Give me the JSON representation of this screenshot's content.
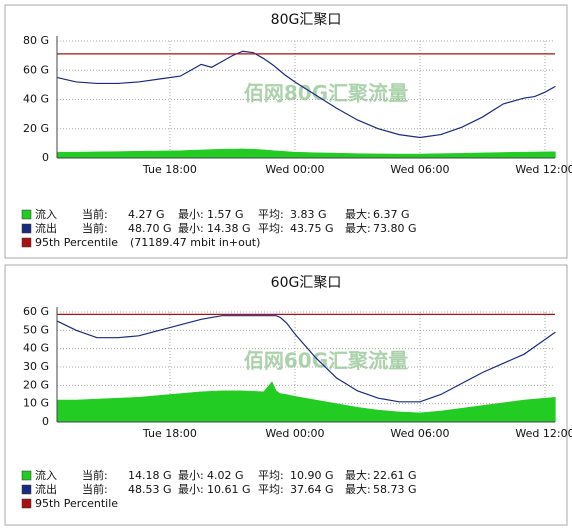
{
  "chart_data": [
    {
      "type": "area-line",
      "title": "80G汇聚口",
      "watermark": "佰网80G汇聚流量",
      "xlim": [
        12.58,
        36.48
      ],
      "ylim": [
        0,
        80
      ],
      "xticks": [
        {
          "value": 18,
          "label": "Tue 18:00"
        },
        {
          "value": 24,
          "label": "Wed 00:00"
        },
        {
          "value": 30,
          "label": "Wed 06:00"
        },
        {
          "value": 36,
          "label": "Wed 12:00"
        }
      ],
      "yticks": [
        0,
        {
          "value": 20,
          "label": "20 G"
        },
        {
          "value": 40,
          "label": "40 G"
        },
        {
          "value": 60,
          "label": "60 G"
        },
        {
          "value": 80,
          "label": "80 G"
        }
      ],
      "grid": true,
      "x": [
        12.6,
        13.5,
        14.5,
        15.5,
        16.5,
        17.5,
        18.5,
        19,
        19.5,
        20,
        20.5,
        21,
        21.5,
        22,
        22.5,
        23,
        23.5,
        24,
        25,
        26,
        27,
        28,
        29,
        30,
        31,
        32,
        33,
        34,
        35,
        35.5,
        36,
        36.5
      ],
      "series": [
        {
          "name": "流入",
          "color": "#22cc22",
          "fill": true,
          "values": [
            4,
            4,
            4.2,
            4.4,
            4.6,
            4.8,
            5,
            5.3,
            5.5,
            5.8,
            6,
            6.1,
            6.2,
            6,
            5.6,
            5,
            4.5,
            4,
            3.6,
            3.3,
            3,
            2.8,
            2.7,
            2.7,
            3,
            3.2,
            3.5,
            3.8,
            4,
            4.1,
            4.2,
            4.3
          ],
          "stats": [
            {
              "label": "当前:",
              "value": "4.27 G"
            },
            {
              "label": "最小:",
              "value": "1.57 G"
            },
            {
              "label": "平均:",
              "value": "3.83 G"
            },
            {
              "label": "最大:",
              "value": "6.37 G"
            }
          ]
        },
        {
          "name": "流出",
          "color": "#1a2a80",
          "fill": false,
          "values": [
            55,
            52,
            51,
            51,
            52,
            54,
            56,
            60,
            64,
            62,
            66,
            70,
            73,
            72,
            68,
            63,
            57,
            52,
            43,
            34,
            26,
            20,
            16,
            14,
            16,
            21,
            28,
            37,
            41,
            42,
            45,
            49
          ],
          "stats": [
            {
              "label": "当前:",
              "value": "48.70 G"
            },
            {
              "label": "最小:",
              "value": "14.38 G"
            },
            {
              "label": "平均:",
              "value": "43.75 G"
            },
            {
              "label": "最大:",
              "value": "73.80 G"
            }
          ]
        }
      ],
      "percentile": {
        "name": "95th Percentile",
        "note": "(71189.47 mbit in+out)",
        "value": 71.18947,
        "color": "#aa1111"
      }
    },
    {
      "type": "area-line",
      "title": "60G汇聚口",
      "watermark": "佰网60G汇聚流量",
      "xlim": [
        12.58,
        36.48
      ],
      "ylim": [
        0,
        60
      ],
      "xticks": [
        {
          "value": 18,
          "label": "Tue 18:00"
        },
        {
          "value": 24,
          "label": "Wed 00:00"
        },
        {
          "value": 30,
          "label": "Wed 06:00"
        },
        {
          "value": 36,
          "label": "Wed 12:00"
        }
      ],
      "yticks": [
        0,
        {
          "value": 10,
          "label": "10 G"
        },
        {
          "value": 20,
          "label": "20 G"
        },
        {
          "value": 30,
          "label": "30 G"
        },
        {
          "value": 40,
          "label": "40 G"
        },
        {
          "value": 50,
          "label": "50 G"
        },
        {
          "value": 60,
          "label": "60 G"
        }
      ],
      "grid": true,
      "x": [
        12.6,
        13.5,
        14.5,
        15.5,
        16.5,
        17.5,
        18.5,
        19.5,
        20.5,
        21.5,
        22.5,
        22.9,
        23.1,
        23.3,
        23.6,
        24,
        25,
        26,
        27,
        28,
        29,
        30,
        31,
        32,
        33,
        34,
        35,
        36,
        36.5
      ],
      "series": [
        {
          "name": "流入",
          "color": "#22cc22",
          "fill": true,
          "values": [
            12,
            12,
            12.5,
            13,
            13.5,
            14.5,
            15.5,
            16.5,
            17,
            17,
            16.5,
            22,
            17,
            15.5,
            15,
            14,
            12,
            10,
            8,
            6.5,
            5.5,
            5,
            6,
            7.5,
            9,
            10.5,
            12,
            13,
            13.5
          ],
          "stats": [
            {
              "label": "当前:",
              "value": "14.18 G"
            },
            {
              "label": "最小:",
              "value": "4.02 G"
            },
            {
              "label": "平均:",
              "value": "10.90 G"
            },
            {
              "label": "最大:",
              "value": "22.61 G"
            }
          ]
        },
        {
          "name": "流出",
          "color": "#1a2a80",
          "fill": false,
          "values": [
            55,
            50,
            46,
            46,
            47,
            50,
            53,
            56,
            58,
            58,
            58,
            58,
            58,
            57,
            54,
            48,
            35,
            24,
            17,
            13,
            11,
            11,
            15,
            21,
            27,
            32,
            37,
            45,
            49
          ],
          "stats": [
            {
              "label": "当前:",
              "value": "48.53 G"
            },
            {
              "label": "最小:",
              "value": "10.61 G"
            },
            {
              "label": "平均:",
              "value": "37.64 G"
            },
            {
              "label": "最大:",
              "value": "58.73 G"
            }
          ]
        }
      ],
      "percentile": {
        "name": "95th Percentile",
        "value": 58.7,
        "color": "#aa1111"
      }
    }
  ]
}
